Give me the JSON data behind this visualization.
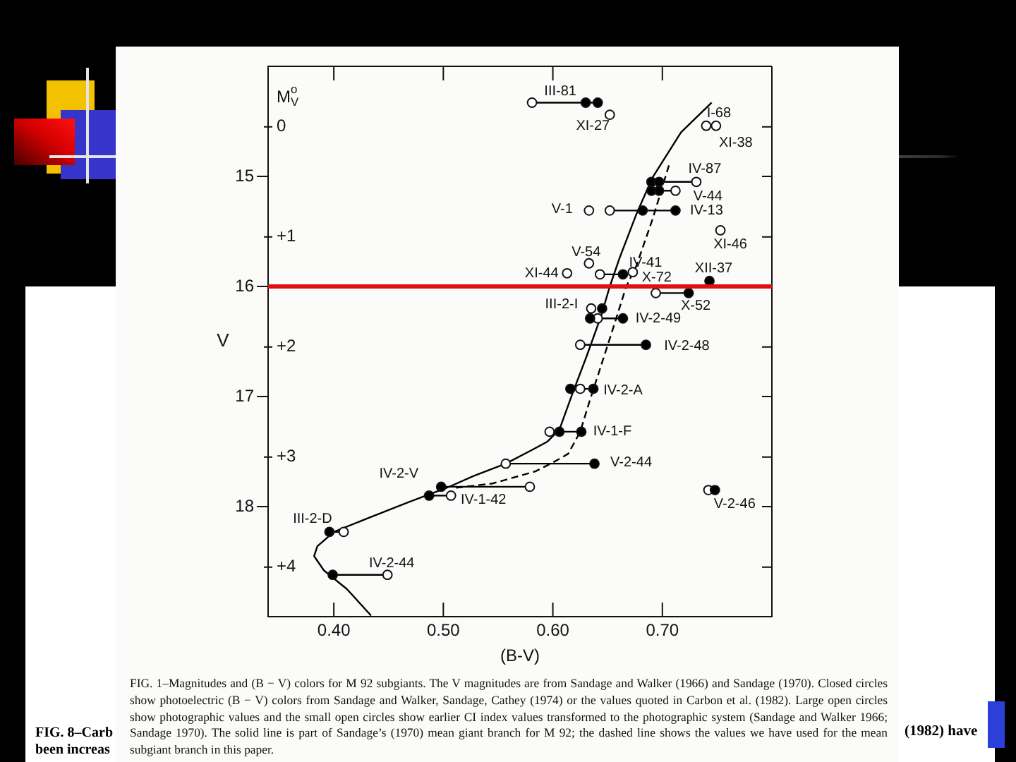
{
  "chart_data": {
    "type": "scatter",
    "xlabel": "(B-V)",
    "ylabel": "V",
    "y2label": "M$^{o}$$_{V}$",
    "xlim": [
      0.34,
      0.8
    ],
    "xticks": [
      {
        "value": 0.4,
        "label": "0.40"
      },
      {
        "value": 0.5,
        "label": "0.50"
      },
      {
        "value": 0.6,
        "label": "0.60"
      },
      {
        "value": 0.7,
        "label": "0.70"
      }
    ],
    "ylim": [
      19.0,
      14.0
    ],
    "yticks": [
      15,
      16,
      17,
      18
    ],
    "y2lim": [
      4.45,
      -0.55
    ],
    "y2ticks": [
      0,
      {
        "value": 1,
        "label": "+1"
      },
      {
        "value": 2,
        "label": "+2"
      },
      {
        "value": 3,
        "label": "+3"
      },
      {
        "value": 4,
        "label": "+4"
      }
    ],
    "series": [
      {
        "color": "#000000",
        "marker": "circle",
        "x": [
          0.63,
          0.641,
          0.69,
          0.697,
          0.69,
          0.697,
          0.682,
          0.712,
          0.664,
          0.743,
          0.724,
          0.645,
          0.634,
          0.664,
          0.685,
          0.616,
          0.637,
          0.606,
          0.626,
          0.638,
          0.498,
          0.487,
          0.748,
          0.396,
          0.399
        ],
        "values": [
          14.33,
          14.33,
          15.05,
          15.05,
          15.13,
          15.13,
          15.31,
          15.31,
          15.89,
          15.95,
          16.06,
          16.2,
          16.29,
          16.29,
          16.53,
          16.93,
          16.93,
          17.32,
          17.32,
          17.61,
          17.82,
          17.9,
          17.85,
          18.23,
          18.62
        ]
      },
      {
        "color": "#ffffff",
        "marker": "circle",
        "x": [
          0.581,
          0.652,
          0.74,
          0.749,
          0.731,
          0.712,
          0.633,
          0.652,
          0.753,
          0.633,
          0.613,
          0.643,
          0.673,
          0.694,
          0.635,
          0.641,
          0.625,
          0.625,
          0.597,
          0.557,
          0.579,
          0.507,
          0.742,
          0.409,
          0.449
        ],
        "values": [
          14.33,
          14.44,
          14.54,
          14.54,
          15.05,
          15.13,
          15.31,
          15.31,
          15.49,
          15.79,
          15.88,
          15.89,
          15.87,
          16.06,
          16.2,
          16.29,
          16.53,
          16.93,
          17.32,
          17.61,
          17.82,
          17.9,
          17.85,
          18.23,
          18.62
        ]
      },
      {
        "type": "line",
        "color": "#000000",
        "marker": "none",
        "x": [
          0.581,
          0.641
        ],
        "values": [
          14.33,
          14.33
        ]
      },
      {
        "type": "line",
        "color": "#000000",
        "marker": "none",
        "x": [
          0.697,
          0.731
        ],
        "values": [
          15.05,
          15.05
        ]
      },
      {
        "type": "line",
        "color": "#000000",
        "marker": "none",
        "x": [
          0.697,
          0.712
        ],
        "values": [
          15.13,
          15.13
        ]
      },
      {
        "type": "line",
        "color": "#000000",
        "marker": "none",
        "x": [
          0.652,
          0.712
        ],
        "values": [
          15.31,
          15.31
        ]
      },
      {
        "type": "line",
        "color": "#000000",
        "marker": "none",
        "x": [
          0.643,
          0.664
        ],
        "values": [
          15.89,
          15.89
        ]
      },
      {
        "type": "line",
        "color": "#000000",
        "marker": "none",
        "x": [
          0.694,
          0.724
        ],
        "values": [
          16.06,
          16.06
        ]
      },
      {
        "type": "line",
        "color": "#000000",
        "marker": "none",
        "x": [
          0.634,
          0.664
        ],
        "values": [
          16.29,
          16.29
        ]
      },
      {
        "type": "line",
        "color": "#000000",
        "marker": "none",
        "x": [
          0.625,
          0.685
        ],
        "values": [
          16.53,
          16.53
        ]
      },
      {
        "type": "line",
        "color": "#000000",
        "marker": "none",
        "x": [
          0.616,
          0.637
        ],
        "values": [
          16.93,
          16.93
        ]
      },
      {
        "type": "line",
        "color": "#000000",
        "marker": "none",
        "x": [
          0.597,
          0.626
        ],
        "values": [
          17.32,
          17.32
        ]
      },
      {
        "type": "line",
        "color": "#000000",
        "marker": "none",
        "x": [
          0.557,
          0.638
        ],
        "values": [
          17.61,
          17.61
        ]
      },
      {
        "type": "line",
        "color": "#000000",
        "marker": "none",
        "x": [
          0.498,
          0.579
        ],
        "values": [
          17.82,
          17.82
        ]
      },
      {
        "type": "line",
        "color": "#000000",
        "marker": "none",
        "x": [
          0.487,
          0.507
        ],
        "values": [
          17.9,
          17.9
        ]
      },
      {
        "type": "line",
        "color": "#000000",
        "marker": "none",
        "x": [
          0.396,
          0.409
        ],
        "values": [
          18.23,
          18.23
        ]
      },
      {
        "type": "line",
        "color": "#000000",
        "marker": "none",
        "x": [
          0.399,
          0.449
        ],
        "values": [
          18.62,
          18.62
        ]
      },
      {
        "type": "line",
        "color": "#000000",
        "marker": "none",
        "x": [
          0.745,
          0.717,
          0.691,
          0.676,
          0.661,
          0.652,
          0.644,
          0.631,
          0.618,
          0.606,
          0.595,
          0.58,
          0.557,
          0.528,
          0.503,
          0.468,
          0.43,
          0.4,
          0.385,
          0.382,
          0.391,
          0.412,
          0.434
        ],
        "values": [
          14.33,
          14.6,
          15.01,
          15.35,
          15.74,
          16.0,
          16.27,
          16.63,
          16.97,
          17.3,
          17.41,
          17.49,
          17.61,
          17.72,
          17.83,
          17.96,
          18.11,
          18.23,
          18.36,
          18.45,
          18.58,
          18.75,
          18.99
        ]
      },
      {
        "type": "line",
        "color": "#000000",
        "marker": "none",
        "line_style": "dashed",
        "x": [
          0.706,
          0.691,
          0.676,
          0.667,
          0.655,
          0.644,
          0.633,
          0.625,
          0.614,
          0.6,
          0.584,
          0.545,
          0.511
        ],
        "values": [
          14.9,
          15.39,
          15.82,
          16.0,
          16.38,
          16.72,
          17.06,
          17.32,
          17.52,
          17.6,
          17.68,
          17.79,
          17.83
        ]
      }
    ],
    "ref_lines": [
      {
        "axis": "y",
        "value": 16.0,
        "color": "#e01010"
      }
    ],
    "annotations": [
      "FIG. 1–Magnitudes and (B − V) colors for M 92 subgiants. The V magnitudes are from Sandage and Walker (1966) and Sandage (1970). Closed circles show photoelectric (B − V) colors from Sandage and Walker, Sandage, Cathey (1974) or the values quoted in Carbon et al. (1982). Large open circles show photographic values and the small open circles show earlier CI index values transformed to the photographic system (Sandage and Walker 1966; Sandage 1970). The solid line is part of Sandage’s (1970) mean giant branch for M 92; the dashed line shows the values we have used for the mean subgiant branch in this paper.",
      "FIG. 8–Carb",
      "been increas",
      "(1982) have",
      {
        "text": "III-81",
        "x": 0.63,
        "y": 14.33
      },
      {
        "text": "XI-27",
        "x": 0.652,
        "y": 14.44
      },
      {
        "text": "I-68",
        "x": 0.74,
        "y": 14.54
      },
      {
        "text": "XI-38",
        "x": 0.749,
        "y": 14.54
      },
      {
        "text": "IV-87",
        "x": 0.731,
        "y": 15.05
      },
      {
        "text": "V-44",
        "x": 0.712,
        "y": 15.13
      },
      {
        "text": "V-1",
        "x": 0.633,
        "y": 15.31
      },
      {
        "text": "IV-13",
        "x": 0.712,
        "y": 15.31
      },
      {
        "text": "XI-46",
        "x": 0.753,
        "y": 15.49
      },
      {
        "text": "V-54",
        "x": 0.633,
        "y": 15.79
      },
      {
        "text": "IV-41",
        "x": 0.664,
        "y": 15.89
      },
      {
        "text": "XI-44",
        "x": 0.613,
        "y": 15.88
      },
      {
        "text": "X-72",
        "x": 0.673,
        "y": 15.87
      },
      {
        "text": "XII-37",
        "x": 0.743,
        "y": 15.95
      },
      {
        "text": "X-52",
        "x": 0.724,
        "y": 16.06
      },
      {
        "text": "III-2-I",
        "x": 0.635,
        "y": 16.2
      },
      {
        "text": "IV-2-49",
        "x": 0.664,
        "y": 16.29
      },
      {
        "text": "IV-2-48",
        "x": 0.685,
        "y": 16.53
      },
      {
        "text": "IV-2-A",
        "x": 0.637,
        "y": 16.93
      },
      {
        "text": "IV-1-F",
        "x": 0.626,
        "y": 17.32
      },
      {
        "text": "V-2-44",
        "x": 0.638,
        "y": 17.61
      },
      {
        "text": "IV-2-V",
        "x": 0.498,
        "y": 17.82
      },
      {
        "text": "IV-1-42",
        "x": 0.507,
        "y": 17.9
      },
      {
        "text": "V-2-46",
        "x": 0.748,
        "y": 17.85
      },
      {
        "text": "III-2-D",
        "x": 0.396,
        "y": 18.23
      },
      {
        "text": "IV-2-44",
        "x": 0.449,
        "y": 18.62
      }
    ]
  }
}
